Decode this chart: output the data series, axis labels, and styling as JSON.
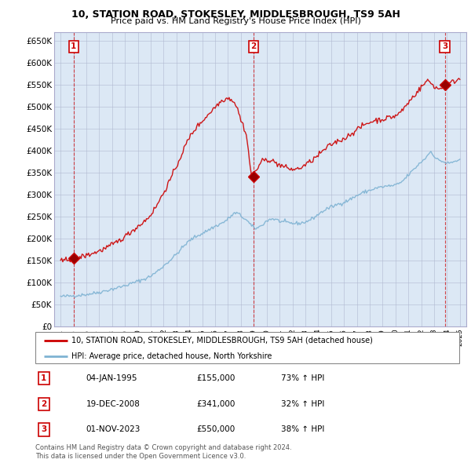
{
  "title1": "10, STATION ROAD, STOKESLEY, MIDDLESBROUGH, TS9 5AH",
  "title2": "Price paid vs. HM Land Registry's House Price Index (HPI)",
  "ylabel_ticks": [
    "£0",
    "£50K",
    "£100K",
    "£150K",
    "£200K",
    "£250K",
    "£300K",
    "£350K",
    "£400K",
    "£450K",
    "£500K",
    "£550K",
    "£600K",
    "£650K"
  ],
  "ytick_values": [
    0,
    50000,
    100000,
    150000,
    200000,
    250000,
    300000,
    350000,
    400000,
    450000,
    500000,
    550000,
    600000,
    650000
  ],
  "xlim_start": 1993.5,
  "xlim_end": 2025.5,
  "ylim_min": 0,
  "ylim_max": 670000,
  "sale_dates": [
    1995.01,
    2008.97,
    2023.83
  ],
  "sale_prices": [
    155000,
    341000,
    550000
  ],
  "sale_labels": [
    "1",
    "2",
    "3"
  ],
  "sale_color": "#cc0000",
  "hpi_color": "#7fb3d3",
  "bg_color": "#dce8f5",
  "grid_color": "#b0b8d0",
  "legend_line1": "10, STATION ROAD, STOKESLEY, MIDDLESBROUGH, TS9 5AH (detached house)",
  "legend_line2": "HPI: Average price, detached house, North Yorkshire",
  "table_rows": [
    [
      "1",
      "04-JAN-1995",
      "£155,000",
      "73% ↑ HPI"
    ],
    [
      "2",
      "19-DEC-2008",
      "£341,000",
      "32% ↑ HPI"
    ],
    [
      "3",
      "01-NOV-2023",
      "£550,000",
      "38% ↑ HPI"
    ]
  ],
  "footer1": "Contains HM Land Registry data © Crown copyright and database right 2024.",
  "footer2": "This data is licensed under the Open Government Licence v3.0."
}
